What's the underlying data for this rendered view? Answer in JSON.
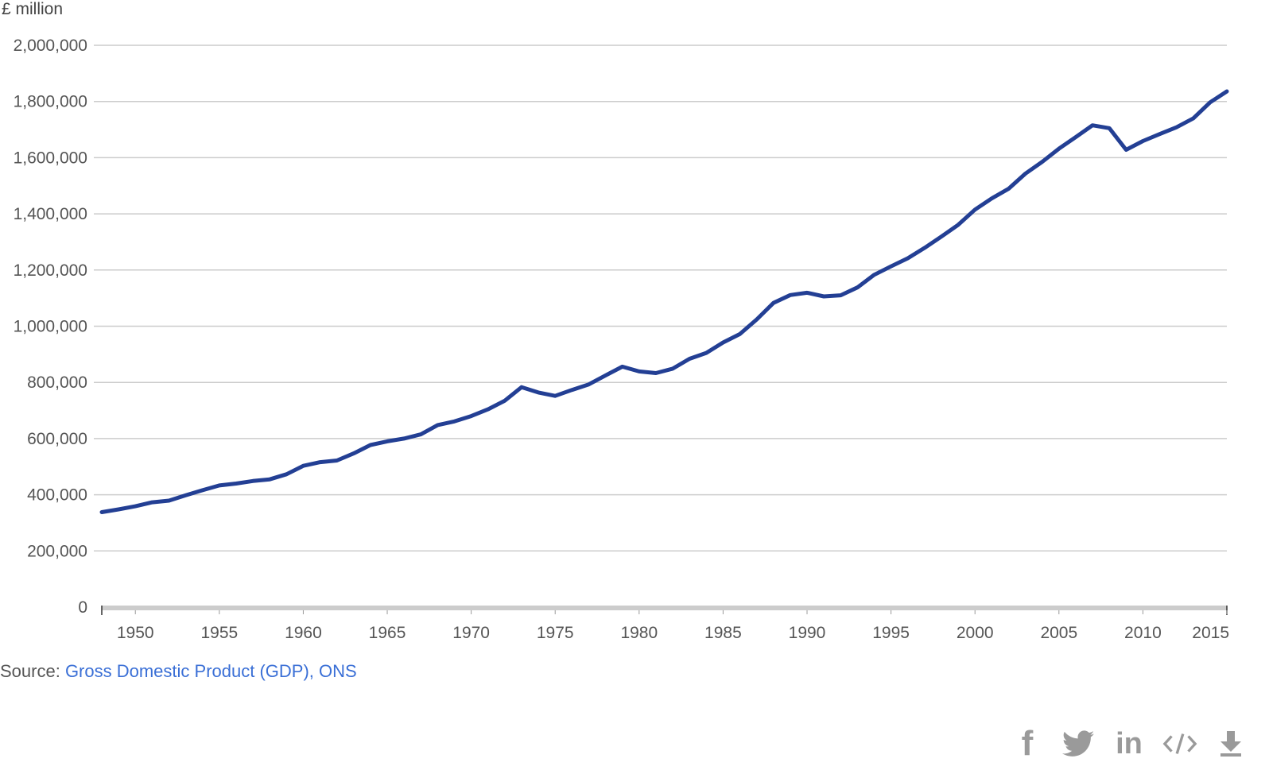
{
  "chart_data": {
    "type": "line",
    "unit_label": "£ million",
    "x": [
      1948,
      1949,
      1950,
      1951,
      1952,
      1953,
      1954,
      1955,
      1956,
      1957,
      1958,
      1959,
      1960,
      1961,
      1962,
      1963,
      1964,
      1965,
      1966,
      1967,
      1968,
      1969,
      1970,
      1971,
      1972,
      1973,
      1974,
      1975,
      1976,
      1977,
      1978,
      1979,
      1980,
      1981,
      1982,
      1983,
      1984,
      1985,
      1986,
      1987,
      1988,
      1989,
      1990,
      1991,
      1992,
      1993,
      1994,
      1995,
      1996,
      1997,
      1998,
      1999,
      2000,
      2001,
      2002,
      2003,
      2004,
      2005,
      2006,
      2007,
      2008,
      2009,
      2010,
      2011,
      2012,
      2013,
      2014,
      2015
    ],
    "series": [
      {
        "values": [
          338000,
          348000,
          359000,
          373000,
          379000,
          398000,
          416000,
          433000,
          440000,
          449000,
          455000,
          473000,
          503000,
          516000,
          522000,
          547000,
          577000,
          590000,
          600000,
          615000,
          648000,
          661000,
          680000,
          704000,
          735000,
          783000,
          764000,
          752000,
          773000,
          793000,
          825000,
          856000,
          839000,
          833000,
          849000,
          884000,
          905000,
          942000,
          972000,
          1024000,
          1083000,
          1111000,
          1119000,
          1106000,
          1110000,
          1138000,
          1183000,
          1213000,
          1242000,
          1279000,
          1319000,
          1361000,
          1415000,
          1455000,
          1489000,
          1543000,
          1585000,
          1632000,
          1673000,
          1715000,
          1705000,
          1628000,
          1659000,
          1684000,
          1708000,
          1740000,
          1797000,
          1836000
        ],
        "color": "#233f94"
      }
    ],
    "ylim": [
      0,
      2000000
    ],
    "yticks": [
      0,
      200000,
      400000,
      600000,
      800000,
      1000000,
      1200000,
      1400000,
      1600000,
      1800000,
      2000000
    ],
    "ytick_labels": [
      "0",
      "200,000",
      "400,000",
      "600,000",
      "800,000",
      "1,000,000",
      "1,200,000",
      "1,400,000",
      "1,600,000",
      "1,800,000",
      "2,000,000"
    ],
    "xlim": [
      1948,
      2015
    ],
    "xticks": [
      1950,
      1955,
      1960,
      1965,
      1970,
      1975,
      1980,
      1985,
      1990,
      1995,
      2000,
      2005,
      2010,
      2015
    ],
    "xtick_labels": [
      "1950",
      "1955",
      "1960",
      "1965",
      "1970",
      "1975",
      "1980",
      "1985",
      "1990",
      "1995",
      "2000",
      "2005",
      "2010",
      "2015"
    ],
    "grid": true,
    "colors": {
      "gridline": "#cccccc",
      "axis": "#cccccc",
      "tick_label": "#555555"
    }
  },
  "source": {
    "prefix": "Source: ",
    "link_text": "Gross Domestic Product (GDP), ONS",
    "link_color": "#3a6fd6"
  },
  "share": {
    "icons": [
      "facebook-icon",
      "twitter-icon",
      "linkedin-icon",
      "embed-code-icon",
      "download-icon"
    ],
    "facebook_glyph": "f",
    "linkedin_glyph": "in",
    "icon_color": "#9a9a9a"
  }
}
